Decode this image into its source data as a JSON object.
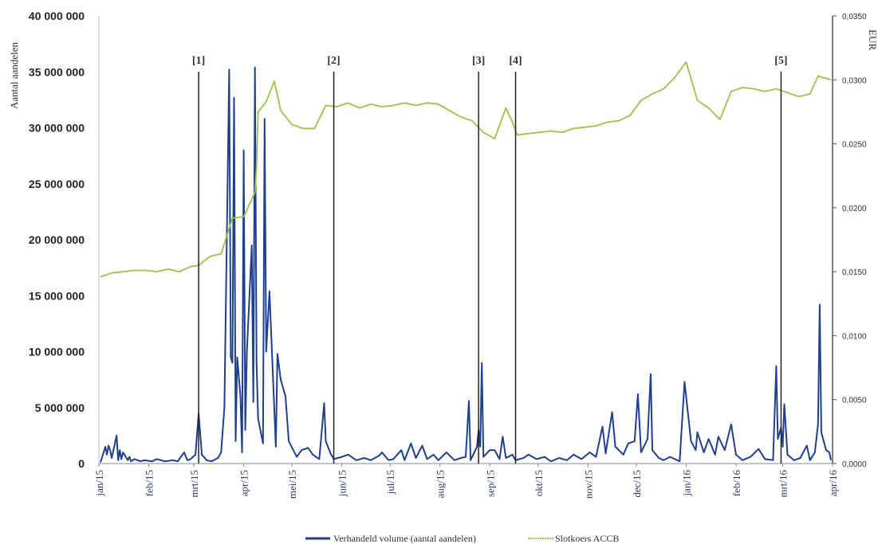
{
  "chart_data": {
    "type": "line",
    "title": "",
    "xlabel": "",
    "ylabel": "Aantal aandelen",
    "ylabel_right": "EUR",
    "ylim": [
      0,
      40000000
    ],
    "ylim_right": [
      0,
      0.035
    ],
    "y_ticks": [
      "0",
      "5 000 000",
      "10 000 000",
      "15 000 000",
      "20 000 000",
      "25 000 000",
      "30 000 000",
      "35 000 000",
      "40 000 000"
    ],
    "y_tick_values": [
      0,
      5000000,
      10000000,
      15000000,
      20000000,
      25000000,
      30000000,
      35000000,
      40000000
    ],
    "y_right_ticks": [
      "0,0000",
      "0,0050",
      "0,0100",
      "0,0150",
      "0,0200",
      "0,0250",
      "0,0300",
      "0,0350"
    ],
    "y_right_tick_values": [
      0,
      0.005,
      0.01,
      0.015,
      0.02,
      0.025,
      0.03,
      0.035
    ],
    "x_ticks": [
      "jan/15",
      "feb/15",
      "mrt/15",
      "apr/15",
      "mei/15",
      "jun/15",
      "jul/15",
      "aug/15",
      "sep/15",
      "okt/15",
      "nov/15",
      "dec/15",
      "jan/16",
      "feb/16",
      "mrt/16",
      "apr/16"
    ],
    "x_tick_dates": [
      "2015-01-01",
      "2015-02-01",
      "2015-03-01",
      "2015-04-01",
      "2015-05-01",
      "2015-06-01",
      "2015-07-01",
      "2015-08-01",
      "2015-09-01",
      "2015-10-01",
      "2015-11-01",
      "2015-12-01",
      "2016-01-01",
      "2016-02-01",
      "2016-03-01",
      "2016-04-01"
    ],
    "markers": [
      {
        "label": "[1]",
        "date": "2015-03-04"
      },
      {
        "label": "[2]",
        "date": "2015-05-27"
      },
      {
        "label": "[3]",
        "date": "2015-08-25"
      },
      {
        "label": "[4]",
        "date": "2015-09-17"
      },
      {
        "label": "[5]",
        "date": "2016-02-29"
      }
    ],
    "series": [
      {
        "name": "Verhandeld volume (aantal aandelen)",
        "axis": "left",
        "color": "#1f3f8f",
        "points": [
          [
            "2015-01-02",
            100000
          ],
          [
            "2015-01-05",
            1500000
          ],
          [
            "2015-01-06",
            800000
          ],
          [
            "2015-01-07",
            1600000
          ],
          [
            "2015-01-08",
            1200000
          ],
          [
            "2015-01-09",
            500000
          ],
          [
            "2015-01-12",
            2500000
          ],
          [
            "2015-01-13",
            300000
          ],
          [
            "2015-01-14",
            1200000
          ],
          [
            "2015-01-15",
            400000
          ],
          [
            "2015-01-16",
            1000000
          ],
          [
            "2015-01-19",
            300000
          ],
          [
            "2015-01-20",
            600000
          ],
          [
            "2015-01-21",
            200000
          ],
          [
            "2015-01-23",
            400000
          ],
          [
            "2015-01-27",
            200000
          ],
          [
            "2015-01-29",
            300000
          ],
          [
            "2015-02-03",
            200000
          ],
          [
            "2015-02-06",
            400000
          ],
          [
            "2015-02-11",
            200000
          ],
          [
            "2015-02-16",
            300000
          ],
          [
            "2015-02-19",
            200000
          ],
          [
            "2015-02-23",
            1000000
          ],
          [
            "2015-02-25",
            300000
          ],
          [
            "2015-02-27",
            400000
          ],
          [
            "2015-03-02",
            800000
          ],
          [
            "2015-03-04",
            4500000
          ],
          [
            "2015-03-06",
            800000
          ],
          [
            "2015-03-09",
            300000
          ],
          [
            "2015-03-12",
            200000
          ],
          [
            "2015-03-16",
            500000
          ],
          [
            "2015-03-18",
            1000000
          ],
          [
            "2015-03-20",
            5000000
          ],
          [
            "2015-03-23",
            35200000
          ],
          [
            "2015-03-24",
            9500000
          ],
          [
            "2015-03-25",
            9000000
          ],
          [
            "2015-03-26",
            32700000
          ],
          [
            "2015-03-27",
            2000000
          ],
          [
            "2015-03-28",
            9500000
          ],
          [
            "2015-03-30",
            6000000
          ],
          [
            "2015-03-31",
            1000000
          ],
          [
            "2015-04-01",
            28000000
          ],
          [
            "2015-04-02",
            3000000
          ],
          [
            "2015-04-03",
            10000000
          ],
          [
            "2015-04-06",
            19500000
          ],
          [
            "2015-04-07",
            5500000
          ],
          [
            "2015-04-08",
            35400000
          ],
          [
            "2015-04-09",
            9000000
          ],
          [
            "2015-04-10",
            4000000
          ],
          [
            "2015-04-13",
            1800000
          ],
          [
            "2015-04-14",
            30800000
          ],
          [
            "2015-04-15",
            10000000
          ],
          [
            "2015-04-17",
            15400000
          ],
          [
            "2015-04-20",
            5000000
          ],
          [
            "2015-04-21",
            1500000
          ],
          [
            "2015-04-22",
            9800000
          ],
          [
            "2015-04-24",
            7500000
          ],
          [
            "2015-04-27",
            6000000
          ],
          [
            "2015-04-29",
            2000000
          ],
          [
            "2015-05-04",
            600000
          ],
          [
            "2015-05-07",
            1200000
          ],
          [
            "2015-05-11",
            1400000
          ],
          [
            "2015-05-14",
            800000
          ],
          [
            "2015-05-18",
            400000
          ],
          [
            "2015-05-21",
            5400000
          ],
          [
            "2015-05-22",
            2000000
          ],
          [
            "2015-05-25",
            900000
          ],
          [
            "2015-05-27",
            400000
          ],
          [
            "2015-06-01",
            600000
          ],
          [
            "2015-06-05",
            800000
          ],
          [
            "2015-06-10",
            300000
          ],
          [
            "2015-06-15",
            500000
          ],
          [
            "2015-06-19",
            300000
          ],
          [
            "2015-06-24",
            700000
          ],
          [
            "2015-06-26",
            1000000
          ],
          [
            "2015-06-30",
            300000
          ],
          [
            "2015-07-03",
            400000
          ],
          [
            "2015-07-08",
            1200000
          ],
          [
            "2015-07-10",
            300000
          ],
          [
            "2015-07-14",
            1800000
          ],
          [
            "2015-07-17",
            500000
          ],
          [
            "2015-07-21",
            1600000
          ],
          [
            "2015-07-24",
            400000
          ],
          [
            "2015-07-28",
            800000
          ],
          [
            "2015-07-31",
            300000
          ],
          [
            "2015-08-05",
            1000000
          ],
          [
            "2015-08-10",
            300000
          ],
          [
            "2015-08-14",
            500000
          ],
          [
            "2015-08-17",
            600000
          ],
          [
            "2015-08-19",
            5600000
          ],
          [
            "2015-08-20",
            300000
          ],
          [
            "2015-08-24",
            1500000
          ],
          [
            "2015-08-25",
            3000000
          ],
          [
            "2015-08-26",
            1500000
          ],
          [
            "2015-08-27",
            9000000
          ],
          [
            "2015-08-28",
            600000
          ],
          [
            "2015-09-01",
            1200000
          ],
          [
            "2015-09-04",
            1200000
          ],
          [
            "2015-09-07",
            400000
          ],
          [
            "2015-09-09",
            2400000
          ],
          [
            "2015-09-11",
            500000
          ],
          [
            "2015-09-15",
            800000
          ],
          [
            "2015-09-17",
            300000
          ],
          [
            "2015-09-22",
            500000
          ],
          [
            "2015-09-25",
            800000
          ],
          [
            "2015-09-30",
            400000
          ],
          [
            "2015-10-05",
            600000
          ],
          [
            "2015-10-09",
            200000
          ],
          [
            "2015-10-14",
            500000
          ],
          [
            "2015-10-19",
            300000
          ],
          [
            "2015-10-23",
            800000
          ],
          [
            "2015-10-28",
            400000
          ],
          [
            "2015-11-02",
            1000000
          ],
          [
            "2015-11-06",
            600000
          ],
          [
            "2015-11-10",
            3300000
          ],
          [
            "2015-11-12",
            900000
          ],
          [
            "2015-11-16",
            4600000
          ],
          [
            "2015-11-18",
            1500000
          ],
          [
            "2015-11-23",
            800000
          ],
          [
            "2015-11-26",
            1800000
          ],
          [
            "2015-11-30",
            2000000
          ],
          [
            "2015-12-02",
            6200000
          ],
          [
            "2015-12-04",
            1000000
          ],
          [
            "2015-12-08",
            2200000
          ],
          [
            "2015-12-10",
            8000000
          ],
          [
            "2015-12-11",
            1200000
          ],
          [
            "2015-12-15",
            500000
          ],
          [
            "2015-12-18",
            300000
          ],
          [
            "2015-12-22",
            600000
          ],
          [
            "2015-12-28",
            200000
          ],
          [
            "2015-12-31",
            7300000
          ],
          [
            "2016-01-04",
            2000000
          ],
          [
            "2016-01-07",
            1200000
          ],
          [
            "2016-01-08",
            2800000
          ],
          [
            "2016-01-12",
            1000000
          ],
          [
            "2016-01-15",
            2200000
          ],
          [
            "2016-01-19",
            800000
          ],
          [
            "2016-01-21",
            2400000
          ],
          [
            "2016-01-25",
            1200000
          ],
          [
            "2016-01-29",
            3500000
          ],
          [
            "2016-02-01",
            800000
          ],
          [
            "2016-02-05",
            300000
          ],
          [
            "2016-02-10",
            600000
          ],
          [
            "2016-02-15",
            1300000
          ],
          [
            "2016-02-19",
            400000
          ],
          [
            "2016-02-24",
            300000
          ],
          [
            "2016-02-26",
            8700000
          ],
          [
            "2016-02-27",
            2200000
          ],
          [
            "2016-02-29",
            3200000
          ],
          [
            "2016-03-01",
            1500000
          ],
          [
            "2016-03-02",
            5300000
          ],
          [
            "2016-03-04",
            800000
          ],
          [
            "2016-03-08",
            300000
          ],
          [
            "2016-03-12",
            500000
          ],
          [
            "2016-03-16",
            1600000
          ],
          [
            "2016-03-18",
            300000
          ],
          [
            "2016-03-21",
            1000000
          ],
          [
            "2016-03-23",
            3500000
          ],
          [
            "2016-03-24",
            14200000
          ],
          [
            "2016-03-25",
            2800000
          ],
          [
            "2016-03-28",
            1200000
          ],
          [
            "2016-03-30",
            1000000
          ],
          [
            "2016-03-31",
            300000
          ]
        ]
      },
      {
        "name": "Slotkoers ACCB",
        "axis": "right",
        "color": "#9bc24c",
        "points": [
          [
            "2015-01-02",
            0.0146
          ],
          [
            "2015-01-09",
            0.0149
          ],
          [
            "2015-01-16",
            0.015
          ],
          [
            "2015-01-23",
            0.0151
          ],
          [
            "2015-01-30",
            0.0151
          ],
          [
            "2015-02-06",
            0.015
          ],
          [
            "2015-02-13",
            0.0152
          ],
          [
            "2015-02-20",
            0.015
          ],
          [
            "2015-02-27",
            0.0154
          ],
          [
            "2015-03-04",
            0.0155
          ],
          [
            "2015-03-11",
            0.0162
          ],
          [
            "2015-03-18",
            0.0164
          ],
          [
            "2015-03-25",
            0.0192
          ],
          [
            "2015-04-01",
            0.0193
          ],
          [
            "2015-04-08",
            0.0212
          ],
          [
            "2015-04-09",
            0.0232
          ],
          [
            "2015-04-10",
            0.0275
          ],
          [
            "2015-04-15",
            0.0283
          ],
          [
            "2015-04-20",
            0.0299
          ],
          [
            "2015-04-24",
            0.0276
          ],
          [
            "2015-05-01",
            0.0265
          ],
          [
            "2015-05-08",
            0.0262
          ],
          [
            "2015-05-15",
            0.0262
          ],
          [
            "2015-05-22",
            0.028
          ],
          [
            "2015-05-29",
            0.0279
          ],
          [
            "2015-06-05",
            0.0282
          ],
          [
            "2015-06-12",
            0.0278
          ],
          [
            "2015-06-19",
            0.0281
          ],
          [
            "2015-06-26",
            0.0279
          ],
          [
            "2015-07-03",
            0.028
          ],
          [
            "2015-07-10",
            0.0282
          ],
          [
            "2015-07-17",
            0.028
          ],
          [
            "2015-07-24",
            0.0282
          ],
          [
            "2015-07-31",
            0.0281
          ],
          [
            "2015-08-07",
            0.0276
          ],
          [
            "2015-08-14",
            0.0271
          ],
          [
            "2015-08-21",
            0.0268
          ],
          [
            "2015-08-28",
            0.0259
          ],
          [
            "2015-09-04",
            0.0254
          ],
          [
            "2015-09-11",
            0.0278
          ],
          [
            "2015-09-15",
            0.0267
          ],
          [
            "2015-09-18",
            0.0257
          ],
          [
            "2015-09-25",
            0.0258
          ],
          [
            "2015-10-02",
            0.0259
          ],
          [
            "2015-10-09",
            0.026
          ],
          [
            "2015-10-16",
            0.0259
          ],
          [
            "2015-10-23",
            0.0262
          ],
          [
            "2015-10-30",
            0.0263
          ],
          [
            "2015-11-06",
            0.0264
          ],
          [
            "2015-11-13",
            0.0267
          ],
          [
            "2015-11-20",
            0.0268
          ],
          [
            "2015-11-27",
            0.0272
          ],
          [
            "2015-12-04",
            0.0284
          ],
          [
            "2015-12-11",
            0.0289
          ],
          [
            "2015-12-18",
            0.0293
          ],
          [
            "2015-12-25",
            0.0302
          ],
          [
            "2016-01-01",
            0.0314
          ],
          [
            "2016-01-08",
            0.0284
          ],
          [
            "2016-01-15",
            0.0278
          ],
          [
            "2016-01-22",
            0.0269
          ],
          [
            "2016-01-29",
            0.0291
          ],
          [
            "2016-02-05",
            0.0294
          ],
          [
            "2016-02-12",
            0.0293
          ],
          [
            "2016-02-19",
            0.0291
          ],
          [
            "2016-02-26",
            0.0293
          ],
          [
            "2016-03-04",
            0.029
          ],
          [
            "2016-03-11",
            0.0287
          ],
          [
            "2016-03-18",
            0.0289
          ],
          [
            "2016-03-23",
            0.0303
          ],
          [
            "2016-03-31",
            0.03
          ]
        ]
      }
    ],
    "legend": {
      "placement": "bottom",
      "items": [
        "Verhandeld volume (aantal aandelen)",
        "Slotkoers ACCB"
      ]
    },
    "grid": false
  }
}
